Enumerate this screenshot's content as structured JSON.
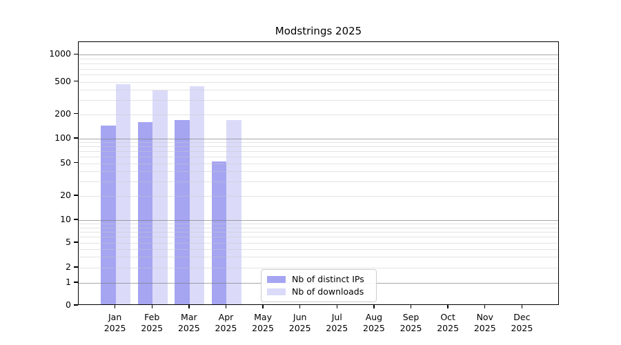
{
  "chart_data": {
    "type": "bar",
    "title": "Modstrings 2025",
    "categories": [
      "Jan",
      "Feb",
      "Mar",
      "Apr",
      "May",
      "Jun",
      "Jul",
      "Aug",
      "Sep",
      "Oct",
      "Nov",
      "Dec"
    ],
    "year": "2025",
    "series": [
      {
        "name": "Nb of distinct IPs",
        "color": "#a5a5f2",
        "values": [
          145,
          160,
          168,
          52,
          null,
          null,
          null,
          null,
          null,
          null,
          null,
          null
        ]
      },
      {
        "name": "Nb of downloads",
        "color": "#dbdbf9",
        "values": [
          470,
          390,
          440,
          168,
          null,
          null,
          null,
          null,
          null,
          null,
          null,
          null
        ]
      }
    ],
    "yscale": "symlog",
    "yticks": [
      0,
      1,
      2,
      5,
      10,
      20,
      50,
      100,
      200,
      500,
      1000
    ],
    "ylim": [
      0,
      1500
    ],
    "xlabel": "",
    "ylabel": "",
    "grid": true,
    "legend_position": "lower center",
    "colors": {
      "bar_dark": "#a5a5f2",
      "bar_light": "#dbdbf9",
      "grid_major": "#787878",
      "grid_minor": "#c8c8c8",
      "spine": "#000000"
    }
  }
}
